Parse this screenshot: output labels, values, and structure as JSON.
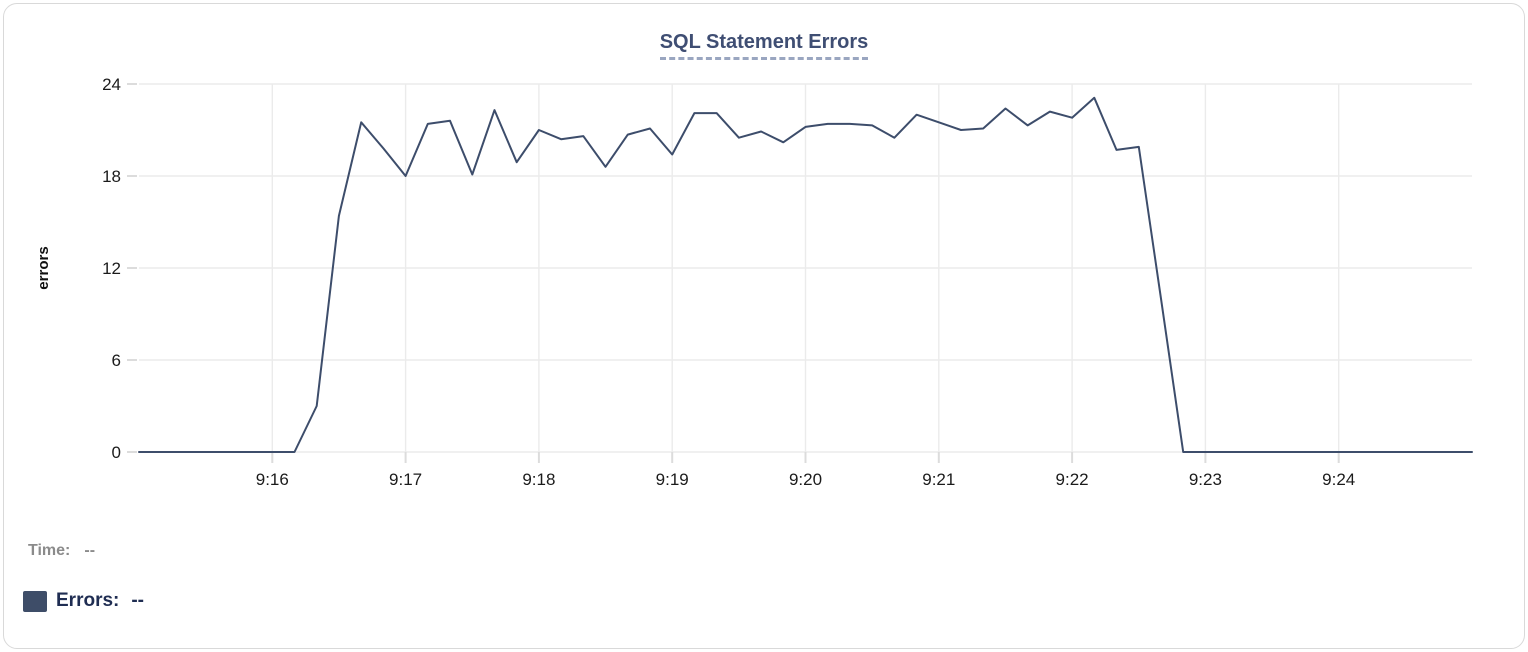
{
  "card": {
    "title": "SQL Statement Errors"
  },
  "tooltip_readout": {
    "time_label": "Time:",
    "time_value": "--",
    "errors_label": "Errors:",
    "errors_value": "--"
  },
  "colors": {
    "line": "#3d4d6b",
    "title": "#3f4e73",
    "title_underline": "#9aa6c0",
    "grid": "#ebebeb",
    "tick": "#dcdcdc",
    "axis_text": "#1b1b1b",
    "axis_title_text": "#111111",
    "time_readout": "#8b8b8b",
    "errors_readout": "#1f2d52",
    "legend_swatch": "#3e4d68",
    "card_border": "#d9d9d9",
    "background": "#ffffff"
  },
  "chart_data": {
    "type": "line",
    "title": "SQL Statement Errors",
    "xlabel": "",
    "ylabel": "errors",
    "ylim": [
      0,
      24
    ],
    "y_ticks": [
      0,
      6,
      12,
      18,
      24
    ],
    "x_tick_labels": [
      "9:16",
      "9:17",
      "9:18",
      "9:19",
      "9:20",
      "9:21",
      "9:22",
      "9:23",
      "9:24"
    ],
    "x_range_time": [
      "9:15:00",
      "9:25:00"
    ],
    "grid": true,
    "legend_position": "bottom-left",
    "series": [
      {
        "name": "Errors",
        "x_times": [
          "9:15:00",
          "9:15:10",
          "9:15:20",
          "9:15:30",
          "9:15:40",
          "9:15:50",
          "9:16:00",
          "9:16:10",
          "9:16:20",
          "9:16:30",
          "9:16:40",
          "9:16:50",
          "9:17:00",
          "9:17:10",
          "9:17:20",
          "9:17:30",
          "9:17:40",
          "9:17:50",
          "9:18:00",
          "9:18:10",
          "9:18:20",
          "9:18:30",
          "9:18:40",
          "9:18:50",
          "9:19:00",
          "9:19:10",
          "9:19:20",
          "9:19:30",
          "9:19:40",
          "9:19:50",
          "9:20:00",
          "9:20:10",
          "9:20:20",
          "9:20:30",
          "9:20:40",
          "9:20:50",
          "9:21:00",
          "9:21:10",
          "9:21:20",
          "9:21:30",
          "9:21:40",
          "9:21:50",
          "9:22:00",
          "9:22:10",
          "9:22:20",
          "9:22:30",
          "9:22:40",
          "9:22:50",
          "9:23:00",
          "9:23:10",
          "9:23:20",
          "9:23:30",
          "9:23:40",
          "9:23:50",
          "9:24:00",
          "9:24:10",
          "9:24:20",
          "9:24:30",
          "9:24:40",
          "9:24:50",
          "9:25:00"
        ],
        "values": [
          0,
          0,
          0,
          0,
          0,
          0,
          0,
          0,
          3,
          15.4,
          21.5,
          19.8,
          18,
          21.4,
          21.6,
          18.1,
          22.3,
          18.9,
          21,
          20.4,
          20.6,
          18.6,
          20.7,
          21.1,
          19.4,
          22.1,
          22.1,
          20.5,
          20.9,
          20.2,
          21.2,
          21.4,
          21.4,
          21.3,
          20.5,
          22,
          21.5,
          21,
          21.1,
          22.4,
          21.3,
          22.2,
          21.8,
          23.1,
          19.7,
          19.9,
          10,
          0,
          0,
          0,
          0,
          0,
          0,
          0,
          0,
          0,
          0,
          0,
          0,
          0,
          0
        ]
      }
    ]
  }
}
